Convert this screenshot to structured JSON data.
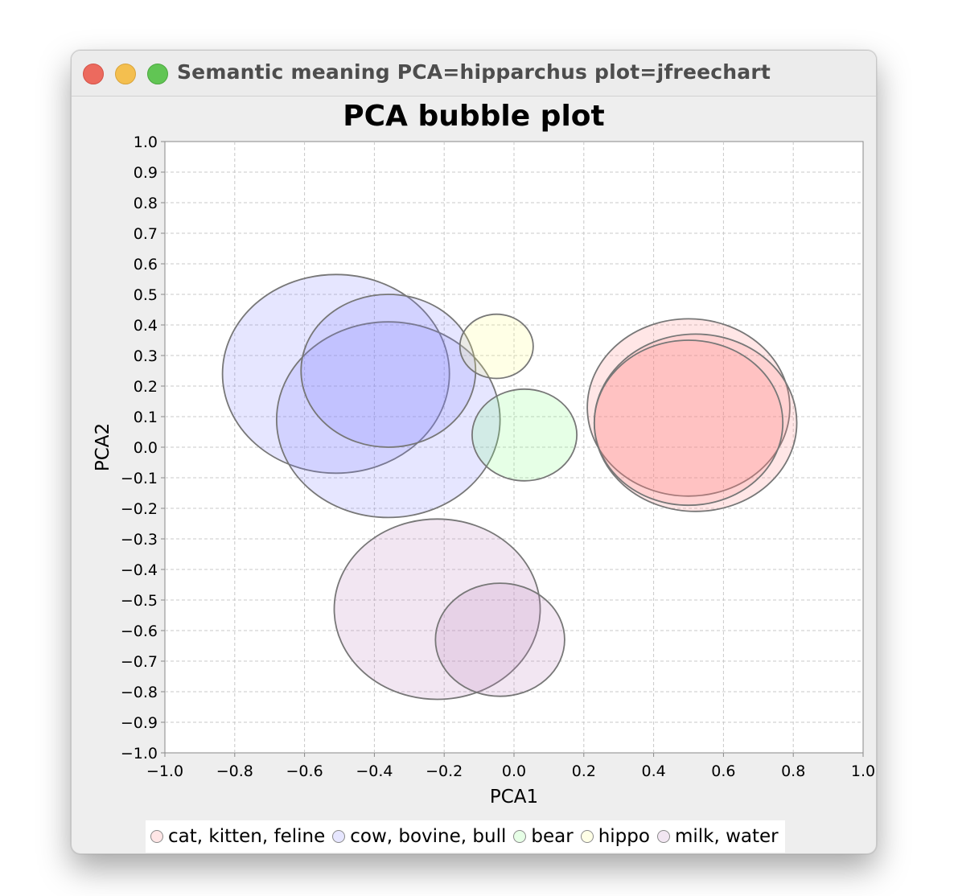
{
  "window": {
    "title": "Semantic meaning PCA=hipparchus plot=jfreechart"
  },
  "chart_data": {
    "type": "scatter",
    "subtype": "bubble",
    "title": "PCA bubble plot",
    "xlabel": "PCA1",
    "ylabel": "PCA2",
    "xlim": [
      -1.0,
      1.0
    ],
    "ylim": [
      -1.0,
      1.0
    ],
    "x_ticks": [
      "−1.0",
      "−0.8",
      "−0.6",
      "−0.4",
      "−0.2",
      "0.0",
      "0.2",
      "0.4",
      "0.6",
      "0.8",
      "1.0"
    ],
    "y_ticks": [
      "1.0",
      "0.9",
      "0.8",
      "0.7",
      "0.6",
      "0.5",
      "0.4",
      "0.3",
      "0.2",
      "0.1",
      "0.0",
      "−0.1",
      "−0.2",
      "−0.3",
      "−0.4",
      "−0.5",
      "−0.6",
      "−0.7",
      "−0.8",
      "−0.9",
      "−1.0"
    ],
    "grid": true,
    "legend_position": "bottom",
    "series": [
      {
        "name": "cat, kitten, feline",
        "color": "#ff8080",
        "points": [
          {
            "x": 0.5,
            "y": 0.13,
            "size": 0.29
          },
          {
            "x": 0.52,
            "y": 0.08,
            "size": 0.29
          },
          {
            "x": 0.5,
            "y": 0.08,
            "size": 0.27
          }
        ]
      },
      {
        "name": "cow, bovine, bull",
        "color": "#8080ff",
        "points": [
          {
            "x": -0.51,
            "y": 0.24,
            "size": 0.325
          },
          {
            "x": -0.36,
            "y": 0.09,
            "size": 0.32
          },
          {
            "x": -0.36,
            "y": 0.25,
            "size": 0.25
          }
        ]
      },
      {
        "name": "bear",
        "color": "#80ff80",
        "points": [
          {
            "x": 0.03,
            "y": 0.04,
            "size": 0.15
          }
        ]
      },
      {
        "name": "hippo",
        "color": "#ffff80",
        "points": [
          {
            "x": -0.05,
            "y": 0.33,
            "size": 0.105
          }
        ]
      },
      {
        "name": "milk, water",
        "color": "#c080c0",
        "points": [
          {
            "x": -0.22,
            "y": -0.53,
            "size": 0.295
          },
          {
            "x": -0.04,
            "y": -0.63,
            "size": 0.185
          }
        ]
      }
    ]
  }
}
